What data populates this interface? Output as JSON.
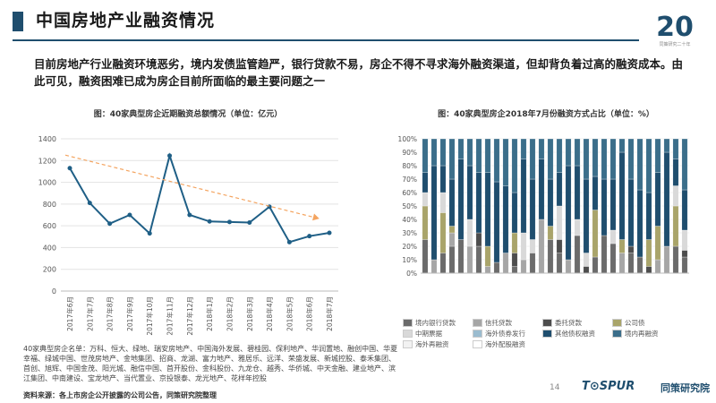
{
  "header": {
    "title": "中国房地产业融资情况",
    "intro": "目前房地产行业融资环境恶劣，境内发债监管趋严，银行贷款不易，房企不得不寻求海外融资渠道，但却背负着过高的融资成本。由此可见，融资困难已成为房企目前所面临的最主要问题之一",
    "logo_number": "20",
    "logo_caption": "同策研究二十年"
  },
  "colors": {
    "accent": "#1f4e6e",
    "line": "#1f5f86",
    "trend": "#f4a460"
  },
  "chart_data": [
    {
      "type": "line",
      "title": "图：40家典型房企近期融资总额情况（单位：亿元）",
      "categories": [
        "2017年6月",
        "2017年7月",
        "2017年8月",
        "2017年9月",
        "2017年10月",
        "2017年11月",
        "2017年12月",
        "2018年1月",
        "2018年2月",
        "2018年3月",
        "2018年4月",
        "2018年5月",
        "2018年6月",
        "2018年7月"
      ],
      "values": [
        1130,
        810,
        620,
        700,
        530,
        1245,
        700,
        640,
        635,
        630,
        775,
        450,
        505,
        535
      ],
      "ylim": [
        0,
        1400
      ],
      "yticks": [
        0,
        200,
        400,
        600,
        800,
        1000,
        1200,
        1400
      ],
      "trendline": {
        "from": 1250,
        "to": 680
      },
      "grid": true
    },
    {
      "type": "bar",
      "stacked": true,
      "title": "图：40家典型房企2018年7月份融资方式占比（单位：%）",
      "ylim": [
        0,
        100
      ],
      "yticks": [
        "0%",
        "10%",
        "20%",
        "30%",
        "40%",
        "50%",
        "60%",
        "70%",
        "80%",
        "90%",
        "100%"
      ],
      "series": [
        {
          "name": "境内银行贷款",
          "color": "#6b6b6b",
          "values": [
            25,
            0,
            15,
            20,
            25,
            0,
            20,
            0,
            8,
            0,
            5,
            0,
            15,
            0,
            25,
            15,
            0,
            28,
            0,
            12,
            28,
            22,
            0,
            15,
            12,
            0,
            0,
            0,
            20,
            12
          ]
        },
        {
          "name": "信托贷款",
          "color": "#a6a6a6",
          "values": [
            0,
            10,
            0,
            10,
            0,
            20,
            0,
            5,
            0,
            15,
            0,
            10,
            0,
            40,
            0,
            0,
            10,
            0,
            0,
            0,
            0,
            0,
            15,
            0,
            0,
            0,
            10,
            20,
            0,
            0
          ]
        },
        {
          "name": "委托贷款",
          "color": "#4d4d4d",
          "values": [
            0,
            0,
            0,
            0,
            0,
            0,
            10,
            0,
            0,
            0,
            10,
            0,
            0,
            0,
            0,
            10,
            0,
            0,
            5,
            0,
            0,
            0,
            0,
            5,
            0,
            5,
            0,
            0,
            0,
            5
          ]
        },
        {
          "name": "公司债",
          "color": "#a9a46a",
          "values": [
            25,
            0,
            30,
            5,
            0,
            0,
            0,
            15,
            0,
            0,
            15,
            0,
            0,
            0,
            10,
            0,
            0,
            0,
            0,
            35,
            0,
            0,
            10,
            0,
            0,
            20,
            25,
            0,
            30,
            0
          ]
        },
        {
          "name": "中期票据",
          "color": "#d9d9d9",
          "values": [
            10,
            0,
            15,
            0,
            0,
            20,
            0,
            0,
            0,
            0,
            0,
            20,
            10,
            0,
            0,
            25,
            0,
            12,
            10,
            0,
            0,
            10,
            0,
            0,
            0,
            0,
            0,
            0,
            15,
            15
          ]
        },
        {
          "name": "海外债券发行",
          "color": "#9bbccf",
          "values": [
            0,
            0,
            0,
            0,
            0,
            0,
            0,
            0,
            0,
            0,
            0,
            0,
            0,
            0,
            0,
            0,
            0,
            0,
            0,
            0,
            0,
            0,
            0,
            0,
            0,
            0,
            0,
            0,
            0,
            0
          ]
        },
        {
          "name": "其他债权融资",
          "color": "#1f4e6e",
          "values": [
            15,
            70,
            20,
            35,
            60,
            40,
            45,
            55,
            60,
            50,
            30,
            55,
            45,
            45,
            35,
            25,
            70,
            40,
            55,
            25,
            42,
            38,
            65,
            50,
            50,
            35,
            40,
            70,
            20,
            30
          ]
        },
        {
          "name": "境内再融资",
          "color": "#3b6e8a",
          "values": [
            25,
            20,
            20,
            30,
            15,
            20,
            25,
            25,
            32,
            35,
            40,
            15,
            30,
            15,
            30,
            25,
            20,
            20,
            30,
            28,
            30,
            30,
            10,
            30,
            38,
            40,
            25,
            10,
            15,
            38
          ]
        },
        {
          "name": "海外再融资",
          "color": "#f2f2f2",
          "values": [
            0,
            0,
            0,
            0,
            0,
            0,
            0,
            0,
            0,
            0,
            0,
            0,
            0,
            0,
            0,
            0,
            0,
            0,
            0,
            0,
            0,
            0,
            0,
            0,
            0,
            0,
            0,
            0,
            0,
            0
          ]
        },
        {
          "name": "海外配股融资",
          "color": "#ffffff",
          "values": [
            0,
            0,
            0,
            0,
            0,
            0,
            0,
            0,
            0,
            0,
            0,
            0,
            0,
            0,
            0,
            0,
            0,
            0,
            0,
            0,
            0,
            0,
            0,
            0,
            0,
            0,
            0,
            0,
            0,
            0
          ]
        }
      ]
    }
  ],
  "footnote": "40家典型房企名单：万科、恒大、绿地、瑞安房地产、中国海外发展、碧桂园、保利地产、华润置地、融创中国、华夏幸福、绿城中国、世茂房地产、金地集团、招商、龙湖、富力地产、雅居乐、远洋、荣盛发展、新城控股、泰禾集团、首创、旭辉、中国金茂、阳光城、融信中国、首开股份、金科股份、九龙仓、越秀、华侨城、中天金融、建业地产、滨江集团、中南建设、宝龙地产、当代置业、京投银泰、龙光地产、花样年控股",
  "source": "资料来源：各上市房企公开披露的公司公告，同策研究院整理",
  "page_number": "14",
  "brand": {
    "en": "T⊙SPUR",
    "cn": "同策研究院"
  }
}
